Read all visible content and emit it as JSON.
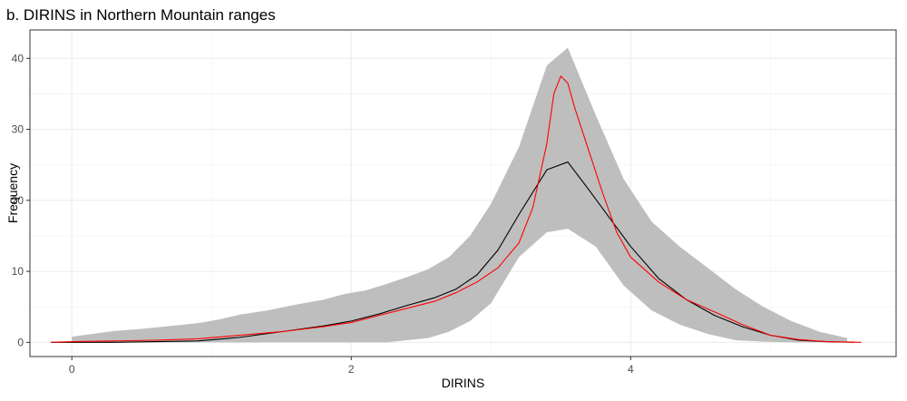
{
  "chart_data": {
    "type": "line",
    "title": "b. DIRINS in Northern Mountain ranges",
    "xlabel": "DIRINS",
    "ylabel": "Frequency",
    "xlim": [
      -0.3,
      5.9
    ],
    "ylim": [
      -2,
      44
    ],
    "x_ticks": [
      0,
      2,
      4
    ],
    "x_tick_labels": [
      "0",
      "2",
      "4"
    ],
    "y_ticks": [
      0,
      10,
      20,
      30,
      40
    ],
    "y_tick_labels": [
      "0",
      "10",
      "20",
      "30",
      "40"
    ],
    "grid": true,
    "legend": "none",
    "colors": {
      "band": "#bebebe",
      "observed": "#000000",
      "simulated": "#ff0000",
      "grid": "#ebebeb",
      "panel_border": "#333333"
    },
    "band": {
      "x": [
        0.0,
        0.15,
        0.3,
        0.5,
        0.7,
        0.9,
        1.05,
        1.2,
        1.4,
        1.6,
        1.8,
        1.95,
        2.1,
        2.25,
        2.4,
        2.55,
        2.7,
        2.85,
        3.0,
        3.2,
        3.4,
        3.55,
        3.75,
        3.95,
        4.15,
        4.35,
        4.55,
        4.75,
        4.95,
        5.15,
        5.35,
        5.55
      ],
      "lower": [
        0,
        0,
        0,
        0,
        0,
        0,
        0,
        0,
        0,
        0,
        0,
        0,
        0,
        0,
        0.3,
        0.6,
        1.5,
        3.0,
        5.5,
        12.0,
        15.5,
        16.0,
        13.5,
        8.0,
        4.5,
        2.5,
        1.2,
        0.3,
        0.1,
        0,
        0,
        0
      ],
      "upper": [
        0.8,
        1.2,
        1.6,
        1.9,
        2.3,
        2.7,
        3.2,
        3.9,
        4.5,
        5.3,
        6.0,
        6.8,
        7.3,
        8.2,
        9.2,
        10.3,
        12.0,
        15.0,
        19.5,
        27.5,
        39.0,
        41.5,
        32.0,
        23.0,
        17.0,
        13.5,
        10.5,
        7.5,
        5.0,
        3.0,
        1.5,
        0.6
      ]
    },
    "series": [
      {
        "x": [
          -0.15,
          0.0,
          0.3,
          0.6,
          0.9,
          1.2,
          1.5,
          1.8,
          2.0,
          2.2,
          2.4,
          2.6,
          2.75,
          2.9,
          3.05,
          3.2,
          3.4,
          3.55,
          3.7,
          3.85,
          4.0,
          4.2,
          4.4,
          4.6,
          4.8,
          5.0,
          5.2,
          5.4,
          5.6
        ],
        "values": [
          0,
          0,
          0,
          0.1,
          0.2,
          0.7,
          1.5,
          2.3,
          3.0,
          4.0,
          5.2,
          6.3,
          7.5,
          9.5,
          13.0,
          18.0,
          24.3,
          25.4,
          21.5,
          17.5,
          13.5,
          9.0,
          6.0,
          3.8,
          2.2,
          1.0,
          0.3,
          0.1,
          0
        ]
      },
      {
        "x": [
          -0.15,
          0.0,
          0.3,
          0.6,
          0.9,
          1.2,
          1.5,
          1.8,
          2.0,
          2.2,
          2.4,
          2.6,
          2.75,
          2.9,
          3.05,
          3.2,
          3.3,
          3.4,
          3.45,
          3.5,
          3.55,
          3.6,
          3.7,
          3.8,
          3.9,
          4.0,
          4.2,
          4.4,
          4.6,
          4.8,
          5.0,
          5.2,
          5.4,
          5.65
        ],
        "values": [
          0,
          0.1,
          0.2,
          0.3,
          0.5,
          1.0,
          1.5,
          2.2,
          2.8,
          3.8,
          4.8,
          5.8,
          7.0,
          8.5,
          10.5,
          14.0,
          19.0,
          28.0,
          35.0,
          37.5,
          36.5,
          33.0,
          27.0,
          21.0,
          15.5,
          12.0,
          8.5,
          6.0,
          4.3,
          2.5,
          1.0,
          0.4,
          0.1,
          0
        ]
      }
    ]
  }
}
